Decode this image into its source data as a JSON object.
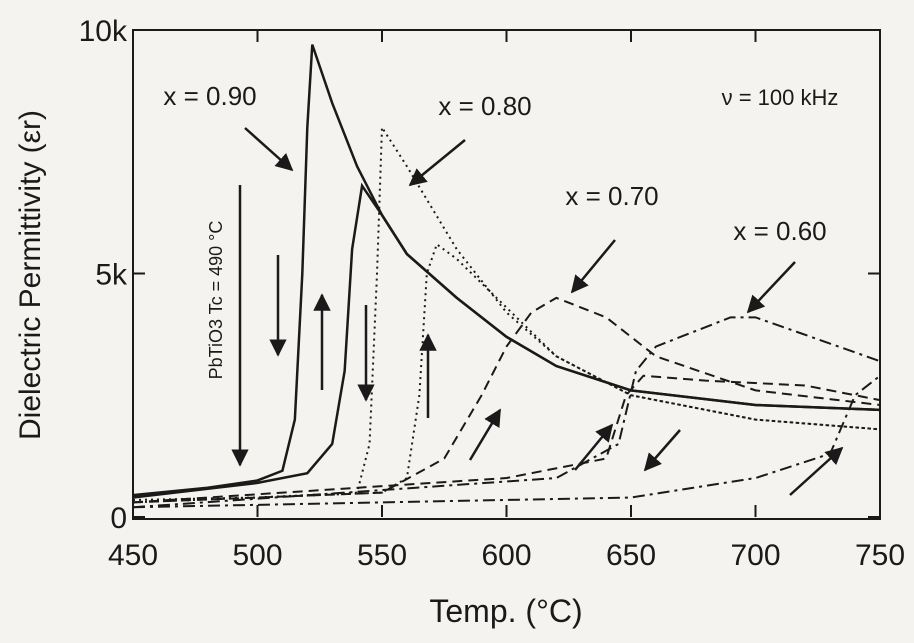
{
  "chart_data": {
    "type": "line",
    "xlabel": "Temp. (°C)",
    "ylabel": "Dielectric Permittivity (εr)",
    "xlim": [
      450,
      750
    ],
    "ylim": [
      0,
      10000
    ],
    "xticks": [
      450,
      500,
      550,
      600,
      650,
      700,
      750
    ],
    "yticks": [
      {
        "value": 0,
        "label": "0"
      },
      {
        "value": 5000,
        "label": "5k"
      },
      {
        "value": 10000,
        "label": "10k"
      }
    ],
    "annotations": [
      "x = 0.90",
      "x = 0.80",
      "x = 0.70",
      "x = 0.60",
      "ν = 100 kHz",
      "PbTiO3 Tc = 490 °C"
    ],
    "series": [
      {
        "color": "#1a1a1a",
        "dash": "solid",
        "x": [
          450,
          480,
          500,
          510,
          515,
          518,
          520,
          522,
          530,
          540,
          550,
          560,
          580,
          600,
          620,
          650,
          700,
          750
        ],
        "values": [
          450,
          600,
          750,
          950,
          2000,
          5000,
          8000,
          9700,
          8500,
          7200,
          6200,
          5400,
          4500,
          3700,
          3100,
          2600,
          2300,
          2200
        ]
      },
      {
        "color": "#1a1a1a",
        "dash": "solid",
        "x": [
          450,
          500,
          520,
          530,
          535,
          538,
          542,
          550,
          560,
          580,
          600,
          620,
          650,
          700,
          750
        ],
        "values": [
          400,
          700,
          900,
          1500,
          3000,
          5500,
          6800,
          6200,
          5400,
          4500,
          3700,
          3100,
          2600,
          2300,
          2200
        ]
      },
      {
        "color": "#1a1a1a",
        "dash": "dotted",
        "x": [
          450,
          500,
          540,
          545,
          548,
          550,
          560,
          580,
          600,
          620,
          650,
          700,
          750
        ],
        "values": [
          350,
          400,
          500,
          1500,
          5000,
          8000,
          7200,
          5500,
          4200,
          3300,
          2500,
          2000,
          1800
        ]
      },
      {
        "color": "#1a1a1a",
        "dash": "dotted",
        "x": [
          450,
          550,
          560,
          565,
          568,
          572,
          580,
          600,
          620,
          650,
          700,
          750
        ],
        "values": [
          300,
          500,
          800,
          2500,
          5000,
          5600,
          5300,
          4300,
          3300,
          2500,
          2000,
          1800
        ]
      },
      {
        "color": "#1a1a1a",
        "dash": "dashed",
        "x": [
          450,
          550,
          575,
          590,
          600,
          610,
          620,
          640,
          660,
          700,
          750
        ],
        "values": [
          300,
          500,
          1200,
          2500,
          3500,
          4200,
          4500,
          4100,
          3300,
          2600,
          2300
        ]
      },
      {
        "color": "#1a1a1a",
        "dash": "dashed",
        "x": [
          450,
          600,
          640,
          648,
          655,
          680,
          720,
          750
        ],
        "values": [
          300,
          800,
          1200,
          2500,
          2900,
          2800,
          2700,
          2400
        ]
      },
      {
        "color": "#1a1a1a",
        "dash": "dashdot",
        "x": [
          450,
          620,
          645,
          652,
          660,
          690,
          700,
          750
        ],
        "values": [
          200,
          800,
          1500,
          3000,
          3500,
          4100,
          4100,
          3200
        ]
      },
      {
        "color": "#1a1a1a",
        "dash": "dashdot",
        "x": [
          450,
          650,
          700,
          730,
          740,
          750
        ],
        "values": [
          200,
          400,
          800,
          1300,
          2500,
          2900
        ]
      }
    ]
  }
}
